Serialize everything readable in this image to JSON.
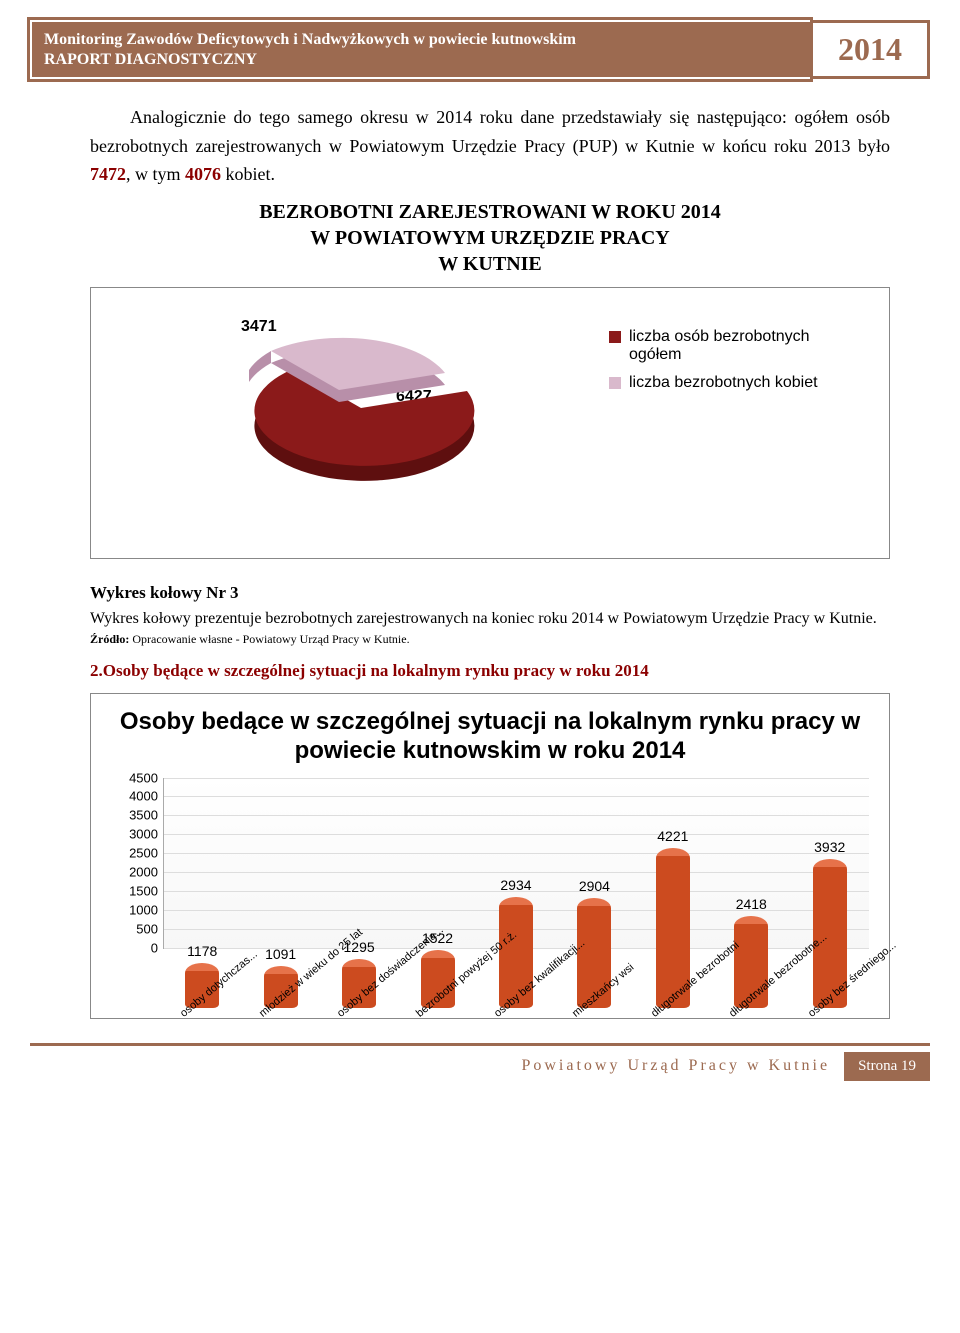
{
  "header": {
    "title_line1": "Monitoring Zawodów Deficytowych i Nadwyżkowych w powiecie kutnowskim",
    "title_line2": "RAPORT DIAGNOSTYCZNY",
    "year": "2014"
  },
  "intro": {
    "text_pre": "Analogicznie do tego samego okresu w 2014 roku dane przedstawiały się następująco: ogółem osób bezrobotnych zarejestrowanych w Powiatowym Urzędzie Pracy (PUP) w Kutnie w końcu roku 2013 było ",
    "v1": "7472",
    "mid": ", w tym ",
    "v2": "4076",
    "post": " kobiet."
  },
  "pie_section": {
    "title_l1": "BEZROBOTNI ZAREJESTROWANI W ROKU 2014",
    "title_l2": "W POWIATOWYM URZĘDZIE PRACY",
    "title_l3": "W KUTNIE"
  },
  "pie_chart": {
    "type": "pie-3d-exploded",
    "labels": [
      "3471",
      "6427"
    ],
    "series": [
      {
        "name": "liczba osób bezrobotnych ogółem",
        "value": 6427,
        "color": "#8b1a1a",
        "side_color": "#5e0f0f"
      },
      {
        "name": "liczba bezrobotnych kobiet",
        "value": 3471,
        "color": "#d9b9cc",
        "side_color": "#b88fa9"
      }
    ],
    "legend": [
      {
        "swatch": "#8b1a1a",
        "text": "liczba osób bezrobotnych ogółem"
      },
      {
        "swatch": "#d9b9cc",
        "text": "liczba bezrobotnych kobiet"
      }
    ],
    "background_color": "#ffffff",
    "font_family": "Arial",
    "label_fontsize": 16
  },
  "pie_caption": {
    "title": "Wykres kołowy Nr 3",
    "desc": "Wykres kołowy prezentuje bezrobotnych zarejestrowanych na koniec roku 2014 w Powiatowym Urzędzie Pracy w Kutnie.",
    "source_label": "Źródło:",
    "source_text": " Opracowanie własne - Powiatowy Urząd Pracy w Kutnie."
  },
  "section2_title": "2.Osoby będące w szczególnej sytuacji na lokalnym rynku pracy w roku 2014",
  "bar_chart": {
    "type": "bar-3d",
    "title": "Osoby bedące w szczególnej sytuacji na lokalnym rynku pracy w powiecie kutnowskim w roku 2014",
    "categories": [
      "osoby dotychczas...",
      "młodzież w wieku do 25 lat",
      "osoby bez doświadczenia...",
      "bezrobotni powyżej 50 r.ż.",
      "osoby bez kwalifikacji...",
      "mieszkańcy wsi",
      "długotrwale bezrobotni",
      "długotrwale bezrobotne...",
      "osoby bez średniego..."
    ],
    "values": [
      1178,
      1091,
      1295,
      1522,
      2934,
      2904,
      4221,
      2418,
      3932
    ],
    "bar_color": "#cc4b1f",
    "bar_top_color": "#e6724a",
    "value_fontsize": 14,
    "ylim": [
      0,
      4500
    ],
    "ytick_step": 500,
    "yticks": [
      0,
      500,
      1000,
      1500,
      2000,
      2500,
      3000,
      3500,
      4000,
      4500
    ],
    "grid_color": "#dddddd",
    "axis_color": "#aaaaaa",
    "background_color": "#ffffff",
    "font_family": "Arial",
    "xlabel_rotation_deg": -40
  },
  "footer": {
    "left": "Powiatowy Urząd Pracy w Kutnie",
    "right": "Strona 19"
  }
}
